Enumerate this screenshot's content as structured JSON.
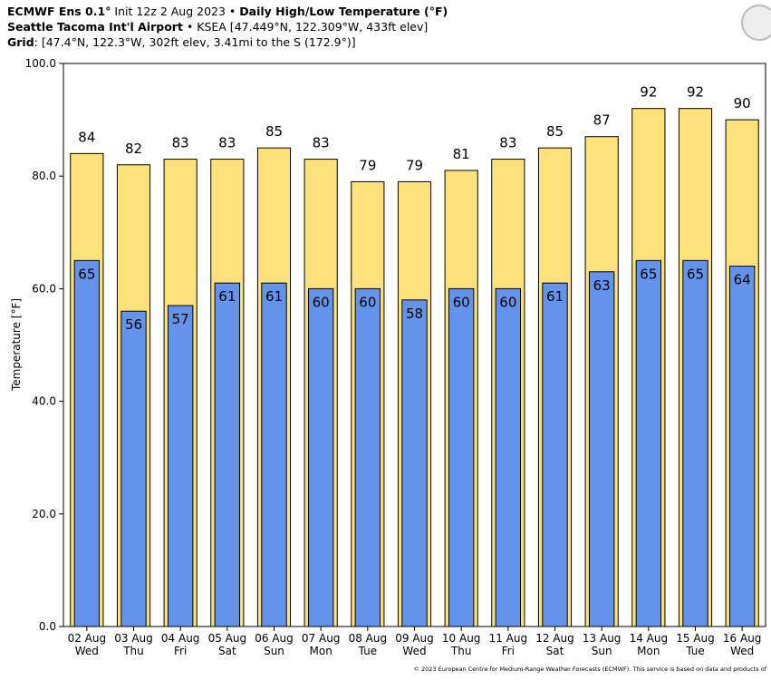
{
  "header": {
    "model": "ECMWF Ens 0.1°",
    "init": " Init 12z 2 Aug 2023 • ",
    "station": "Seattle Tacoma Int'l Airport",
    "station_info": " • KSEA [47.449°N, 122.309°W, 433ft elev]",
    "grid_label": "Grid",
    "grid_info": ": [47.4°N, 122.3°W, 302ft elev, 3.41mi to the S (172.9°)]"
  },
  "footer": {
    "copyright": "© 2023 European Centre for Medium-Range Weather Forecasts (ECMWF). This service is based on data and products of"
  },
  "chart_data": {
    "type": "bar",
    "title": "Daily High/Low Temperature (°F)",
    "y_label": "Temperature [°F]",
    "categories": [
      [
        "02 Aug",
        "Wed"
      ],
      [
        "03 Aug",
        "Thu"
      ],
      [
        "04 Aug",
        "Fri"
      ],
      [
        "05 Aug",
        "Sat"
      ],
      [
        "06 Aug",
        "Sun"
      ],
      [
        "07 Aug",
        "Mon"
      ],
      [
        "08 Aug",
        "Tue"
      ],
      [
        "09 Aug",
        "Wed"
      ],
      [
        "10 Aug",
        "Thu"
      ],
      [
        "11 Aug",
        "Fri"
      ],
      [
        "12 Aug",
        "Sat"
      ],
      [
        "13 Aug",
        "Sun"
      ],
      [
        "14 Aug",
        "Mon"
      ],
      [
        "15 Aug",
        "Tue"
      ],
      [
        "16 Aug",
        "Wed"
      ]
    ],
    "series": [
      {
        "color": "#fde27b",
        "values": [
          84,
          82,
          83,
          83,
          85,
          83,
          79,
          79,
          81,
          83,
          85,
          87,
          92,
          92,
          90
        ]
      },
      {
        "color": "#6493eb",
        "values": [
          65,
          56,
          57,
          61,
          61,
          60,
          60,
          58,
          60,
          60,
          61,
          63,
          65,
          65,
          64
        ]
      }
    ],
    "ylim": [
      0,
      100
    ],
    "yticks": [
      {
        "value": 0,
        "label": "0.0"
      },
      {
        "value": 20,
        "label": "20.0"
      },
      {
        "value": 40,
        "label": "40.0"
      },
      {
        "value": 60,
        "label": "60.0"
      },
      {
        "value": 80,
        "label": "80.0"
      },
      {
        "value": 100,
        "label": "100.0"
      }
    ]
  }
}
